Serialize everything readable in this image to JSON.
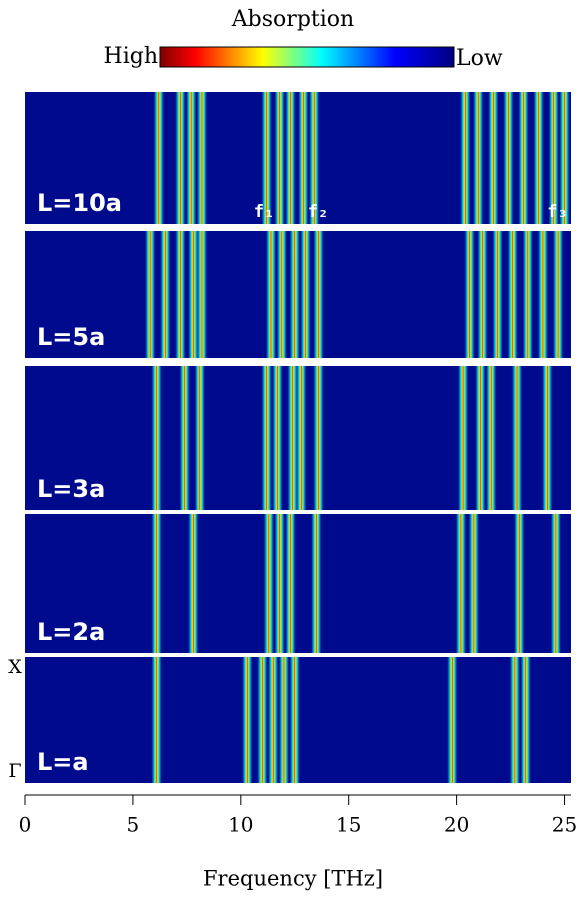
{
  "chart_data": {
    "type": "spectra",
    "colorbar": {
      "title": "Absorption",
      "high": "High",
      "low": "Low"
    },
    "xlabel": "Frequency [THz]",
    "xlim": [
      0,
      25.3
    ],
    "xticks": [
      0,
      5,
      10,
      15,
      20,
      25
    ],
    "side_labels": {
      "top": "X",
      "bottom": "Γ"
    },
    "mode_labels": [
      {
        "label": "f₁",
        "x": 10.6
      },
      {
        "label": "f₂",
        "x": 13.1
      },
      {
        "label": "f₃",
        "x": 24.2
      }
    ],
    "panels": [
      {
        "label": "L=10a",
        "bands": [
          6.2,
          7.2,
          7.7,
          8.2,
          11.2,
          11.8,
          12.3,
          12.9,
          13.4,
          20.4,
          21.0,
          21.7,
          22.4,
          23.1,
          23.8,
          24.5,
          25.0
        ]
      },
      {
        "label": "L=5a",
        "bands": [
          5.8,
          6.5,
          7.2,
          7.8,
          8.2,
          11.4,
          11.9,
          12.5,
          13.0,
          13.6,
          20.6,
          21.2,
          21.9,
          22.6,
          23.3,
          24.0,
          24.7
        ]
      },
      {
        "label": "L=3a",
        "bands": [
          6.1,
          7.4,
          8.1,
          11.2,
          11.7,
          12.4,
          12.8,
          13.6,
          20.3,
          21.1,
          21.6,
          22.8,
          24.2
        ]
      },
      {
        "label": "L=2a",
        "bands": [
          6.1,
          7.8,
          11.3,
          11.8,
          12.3,
          13.5,
          20.2,
          20.8,
          22.9,
          24.6
        ]
      },
      {
        "label": "L=a",
        "bands": [
          6.1,
          10.3,
          11.0,
          11.5,
          12.0,
          12.5,
          19.8,
          22.7,
          23.2
        ]
      }
    ]
  }
}
